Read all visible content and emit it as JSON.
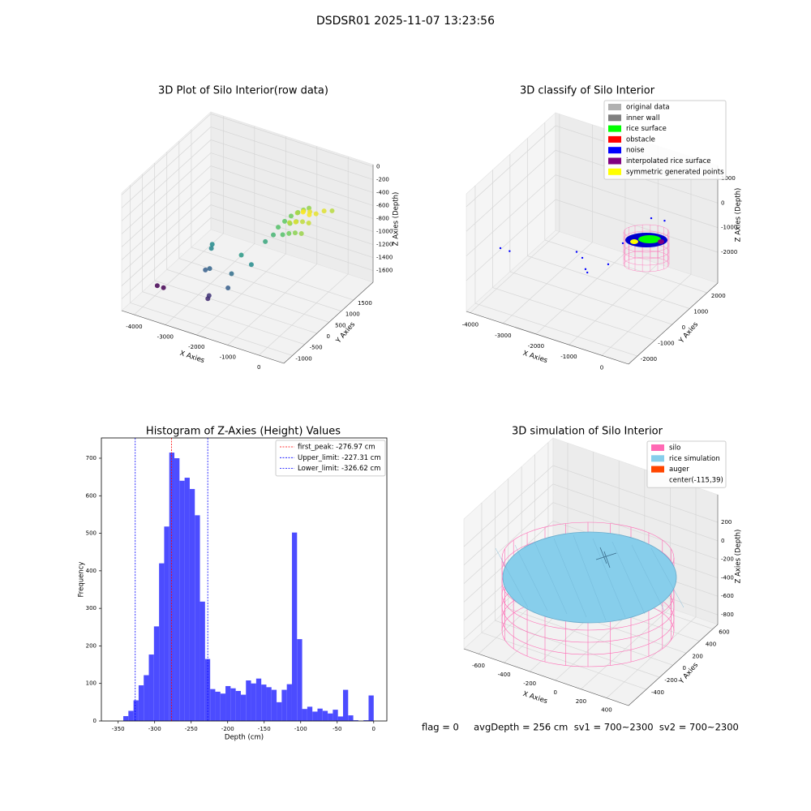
{
  "title": "DSDSR01 2025-11-07 13:23:56",
  "status": "flag = 0     avgDepth = 256 cm  sv1 = 700~2300  sv2 = 700~2300",
  "chart_data": [
    {
      "type": "scatter3d",
      "title": "3D Plot of Silo Interior(row data)",
      "x_label": "X Axies",
      "y_label": "Y Axies",
      "z_label": "Z Axies (Depth)",
      "xlim": [
        -4400,
        800
      ],
      "ylim": [
        -1350,
        2300
      ],
      "zlim": [
        -1780,
        30
      ],
      "xticks": [
        -4000,
        -3000,
        -2000,
        -1000,
        0
      ],
      "yticks": [
        -1000,
        -500,
        0,
        500,
        1000,
        1500
      ],
      "zticks": [
        -1600,
        -1400,
        -1200,
        -1000,
        -800,
        -600,
        -400,
        -200,
        0
      ],
      "colormap": "viridis",
      "x": [
        -3650,
        -3450,
        -2750,
        -2700,
        -1950,
        -1950,
        -2500,
        -2400,
        -1700,
        -1500,
        -1300,
        -1700,
        -1400,
        -1300,
        -1300,
        -1250,
        -1200,
        -1100,
        -1000,
        -900,
        -1000,
        -800,
        -600,
        -400,
        -1000,
        -800,
        -600,
        -400,
        -1000,
        -800,
        -600,
        -400,
        -900,
        -700,
        -500,
        -700,
        -300,
        -200
      ],
      "y": [
        -850,
        -850,
        250,
        150,
        -950,
        -900,
        -350,
        -300,
        -300,
        -700,
        0,
        100,
        700,
        900,
        1100,
        1300,
        1500,
        1650,
        1750,
        1850,
        900,
        900,
        900,
        900,
        1200,
        1200,
        1200,
        1200,
        1500,
        1500,
        1500,
        1500,
        1050,
        1050,
        1350,
        1350,
        1700,
        1900
      ],
      "z": [
        -1450,
        -1450,
        -1050,
        -1070,
        -1350,
        -1320,
        -1200,
        -1180,
        -1150,
        -1200,
        -1050,
        -1000,
        -950,
        -900,
        -850,
        -820,
        -800,
        -780,
        -760,
        -750,
        -850,
        -800,
        -760,
        -740,
        -780,
        -720,
        -690,
        -680,
        -720,
        -660,
        -640,
        -640,
        -700,
        -660,
        -620,
        -610,
        -650,
        -700
      ]
    },
    {
      "type": "scatter3d",
      "title": "3D classify of Silo Interior",
      "x_label": "X Axies",
      "y_label": "Y Axies",
      "z_label": "Z Axies (Depth)",
      "xlim": [
        -4120,
        815
      ],
      "ylim": [
        -2510,
        2615
      ],
      "zlim": [
        -3252,
        1525
      ],
      "xticks": [
        -4000,
        -3000,
        -2000,
        -1000,
        0
      ],
      "yticks": [
        -2000,
        -1000,
        0,
        1000,
        2000
      ],
      "zticks": [
        -2000,
        -1000,
        0,
        1000
      ],
      "legend": "upper right",
      "series": [
        {
          "name": "original data",
          "color": "#b0b0b0"
        },
        {
          "name": "inner wall",
          "color": "#808080"
        },
        {
          "name": "rice surface",
          "color": "#00ff00"
        },
        {
          "name": "obstacle",
          "color": "#ff0000"
        },
        {
          "name": "noise",
          "color": "#0000ff",
          "x": [
            -3550,
            -3270,
            -1750,
            -1475,
            -1124,
            -1000,
            -735,
            -927,
            -300,
            0
          ],
          "y": [
            -1629,
            -1629,
            -650,
            -840,
            -1320,
            -1450,
            -750,
            452,
            900,
            1100
          ],
          "z": [
            -1000,
            -1000,
            -1000,
            -1000,
            -1000,
            -1000,
            -1000,
            -1000,
            0,
            -100
          ]
        },
        {
          "name": "interpolated rice surface",
          "color": "#800080"
        },
        {
          "name": "symmetric generated points",
          "color": "#ffff00"
        }
      ]
    },
    {
      "type": "histogram",
      "title": "Histogram of Z-Axies (Height) Values",
      "x_label": "Depth (cm)",
      "y_label": "Frequency",
      "color": "#4c4cff",
      "bins": [
        -350,
        -343,
        -336,
        -329,
        -322,
        -315,
        -308,
        -301,
        -294,
        -287,
        -280,
        -273,
        -266,
        -259,
        -252,
        -245,
        -238,
        -231,
        -224,
        -217,
        -210,
        -203,
        -196,
        -189,
        -182,
        -175,
        -168,
        -161,
        -154,
        -147,
        -140,
        -133,
        -126,
        -119,
        -112,
        -105,
        -98,
        -91,
        -84,
        -77,
        -70,
        -63,
        -56,
        -49,
        -42,
        -35,
        -28,
        -21,
        -14,
        -7,
        0
      ],
      "counts": [
        0,
        13,
        27,
        55,
        95,
        122,
        177,
        252,
        420,
        518,
        715,
        700,
        640,
        648,
        618,
        548,
        318,
        165,
        85,
        78,
        73,
        93,
        87,
        80,
        70,
        108,
        100,
        113,
        97,
        90,
        83,
        50,
        83,
        98,
        502,
        218,
        32,
        38,
        25,
        33,
        27,
        20,
        30,
        12,
        83,
        15,
        2,
        0,
        2,
        68
      ],
      "xlim": [
        -373,
        18
      ],
      "ylim": [
        0,
        754
      ],
      "xticks": [
        -350,
        -300,
        -250,
        -200,
        -150,
        -100,
        -50,
        0
      ],
      "yticks": [
        0,
        100,
        200,
        300,
        400,
        500,
        600,
        700
      ],
      "legend": "upper right",
      "vlines": [
        {
          "name": "first_peak: -276.97 cm",
          "value": -276.97,
          "color": "#ff0000"
        },
        {
          "name": "Upper_limit: -227.31 cm",
          "value": -227.31,
          "color": "#0000ff"
        },
        {
          "name": "Lower_limit: -326.62 cm",
          "value": -326.62,
          "color": "#0000ff"
        }
      ]
    },
    {
      "type": "surface3d",
      "title": "3D simulation of Silo Interior",
      "x_label": "X Axies",
      "y_label": "Y Axies",
      "z_label": "Z Axies (Depth)",
      "xlim": [
        -714,
        571
      ],
      "ylim": [
        -668,
        674
      ],
      "zlim": [
        -905,
        498
      ],
      "xticks": [
        -600,
        -400,
        -200,
        0,
        200,
        400
      ],
      "yticks": [
        -400,
        -200,
        0,
        200,
        400,
        600
      ],
      "zticks": [
        -800,
        -600,
        -400,
        -200,
        0,
        200
      ],
      "legend": "upper right",
      "series": [
        {
          "name": "silo",
          "color": "#ff69b4"
        },
        {
          "name": "rice simulation",
          "color": "#87ceeb"
        },
        {
          "name": "auger",
          "color": "#ff4500"
        },
        {
          "name": "center(-115,39)"
        }
      ]
    }
  ]
}
